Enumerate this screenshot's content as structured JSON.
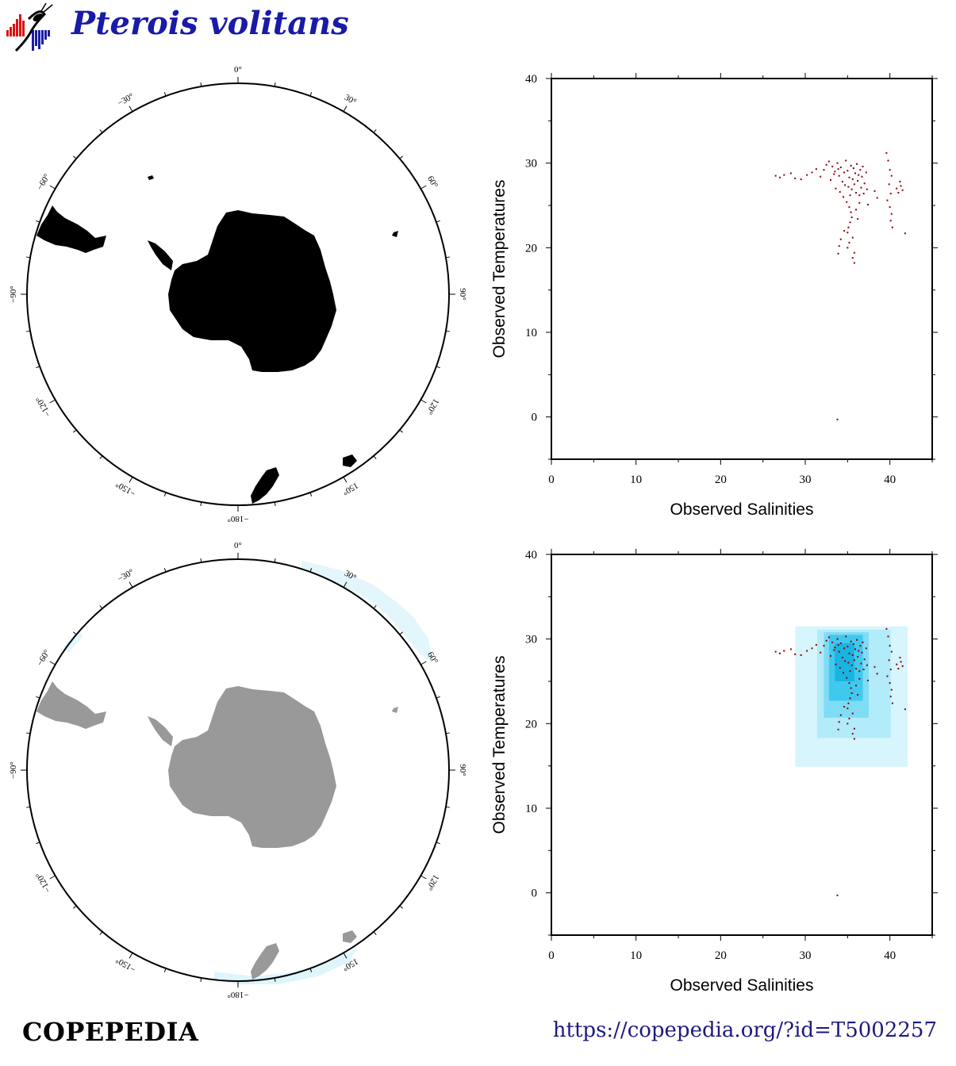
{
  "header": {
    "species": "Pterois volitans",
    "logo_icon": "copepod-histogram-logo"
  },
  "maps": {
    "longitude_labels": [
      {
        "deg": 0,
        "text": "0°"
      },
      {
        "deg": 30,
        "text": "30°"
      },
      {
        "deg": 60,
        "text": "60°"
      },
      {
        "deg": 90,
        "text": "90°"
      },
      {
        "deg": 120,
        "text": "120°"
      },
      {
        "deg": 150,
        "text": "150°"
      },
      {
        "deg": 180,
        "text": "−180°"
      },
      {
        "deg": 210,
        "text": "−150°"
      },
      {
        "deg": 240,
        "text": "−120°"
      },
      {
        "deg": 270,
        "text": "−90°"
      },
      {
        "deg": 300,
        "text": "−60°"
      },
      {
        "deg": 330,
        "text": "−30°"
      }
    ],
    "top": {
      "land_color": "#000000",
      "description_icon": "south-polar-map"
    },
    "bottom": {
      "land_color": "#999999",
      "ocean_highlight": "#d6f2fb"
    }
  },
  "chart_data": [
    {
      "type": "scatter",
      "xlabel": "Observed Salinities",
      "ylabel": "Observed Temperatures",
      "xlim": [
        0,
        45
      ],
      "ylim": [
        -5,
        40
      ],
      "xticks": [
        0,
        10,
        20,
        30,
        40
      ],
      "yticks": [
        0,
        10,
        20,
        30,
        40
      ],
      "point_color": "#8b0000",
      "points": [
        [
          26.5,
          28.5
        ],
        [
          27,
          28.3
        ],
        [
          27.5,
          28.6
        ],
        [
          28.3,
          28.8
        ],
        [
          28.8,
          28.2
        ],
        [
          29.5,
          28.1
        ],
        [
          30.2,
          28.6
        ],
        [
          30.8,
          28.9
        ],
        [
          31.3,
          29.3
        ],
        [
          31.8,
          28.4
        ],
        [
          32.2,
          29.2
        ],
        [
          32.5,
          29.8
        ],
        [
          32.8,
          30.2
        ],
        [
          33.2,
          29.6
        ],
        [
          33.5,
          29.0
        ],
        [
          33.8,
          30.0
        ],
        [
          34.0,
          28.5
        ],
        [
          34.2,
          29.5
        ],
        [
          34.4,
          27.8
        ],
        [
          34.6,
          28.9
        ],
        [
          34.8,
          30.3
        ],
        [
          35.0,
          29.1
        ],
        [
          35.1,
          27.2
        ],
        [
          35.2,
          28.3
        ],
        [
          35.4,
          29.7
        ],
        [
          35.5,
          26.9
        ],
        [
          35.6,
          28.1
        ],
        [
          35.7,
          29.4
        ],
        [
          35.8,
          27.5
        ],
        [
          35.9,
          28.8
        ],
        [
          36.0,
          26.5
        ],
        [
          36.1,
          29.9
        ],
        [
          36.2,
          27.9
        ],
        [
          36.3,
          28.6
        ],
        [
          36.4,
          26.2
        ],
        [
          36.5,
          29.2
        ],
        [
          36.6,
          27.1
        ],
        [
          36.7,
          28.4
        ],
        [
          36.8,
          29.6
        ],
        [
          37.0,
          27.6
        ],
        [
          37.2,
          28.9
        ],
        [
          33.6,
          27.0
        ],
        [
          34.1,
          26.6
        ],
        [
          34.5,
          26.0
        ],
        [
          34.9,
          25.4
        ],
        [
          35.2,
          24.8
        ],
        [
          35.4,
          24.2
        ],
        [
          35.5,
          23.6
        ],
        [
          35.3,
          23.0
        ],
        [
          35.1,
          22.4
        ],
        [
          35.0,
          21.8
        ],
        [
          35.6,
          21.2
        ],
        [
          35.2,
          20.6
        ],
        [
          35.0,
          20.0
        ],
        [
          35.8,
          19.4
        ],
        [
          35.6,
          18.8
        ],
        [
          35.8,
          18.2
        ],
        [
          34.0,
          20.2
        ],
        [
          33.9,
          19.3
        ],
        [
          34.2,
          21.0
        ],
        [
          34.6,
          22.0
        ],
        [
          36.0,
          24.5
        ],
        [
          36.2,
          23.4
        ],
        [
          36.4,
          25.3
        ],
        [
          33.0,
          28.0
        ],
        [
          33.4,
          28.7
        ],
        [
          33.9,
          29.3
        ],
        [
          34.7,
          27.4
        ],
        [
          35.3,
          26.2
        ],
        [
          36.9,
          26.4
        ],
        [
          37.3,
          26.9
        ],
        [
          37.4,
          25.1
        ],
        [
          38.2,
          26.7
        ],
        [
          38.5,
          25.9
        ],
        [
          39.6,
          31.2
        ],
        [
          39.8,
          30.3
        ],
        [
          40.0,
          29.2
        ],
        [
          40.2,
          28.5
        ],
        [
          39.9,
          27.5
        ],
        [
          40.1,
          26.4
        ],
        [
          39.7,
          25.6
        ],
        [
          40.0,
          24.8
        ],
        [
          40.2,
          24.0
        ],
        [
          40.1,
          23.2
        ],
        [
          40.3,
          22.4
        ],
        [
          40.8,
          27.0
        ],
        [
          41.0,
          26.5
        ],
        [
          41.3,
          27.3
        ],
        [
          41.5,
          26.8
        ],
        [
          41.2,
          27.8
        ],
        [
          41.8,
          21.7
        ],
        [
          33.8,
          -0.3
        ]
      ],
      "density_boxes": []
    },
    {
      "type": "scatter",
      "xlabel": "Observed Salinities",
      "ylabel": "Observed Temperatures",
      "xlim": [
        0,
        45
      ],
      "ylim": [
        -5,
        40
      ],
      "xticks": [
        0,
        10,
        20,
        30,
        40
      ],
      "yticks": [
        0,
        10,
        20,
        30,
        40
      ],
      "point_color": "#8b0000",
      "density_boxes": [
        {
          "x": [
            28.8,
            42.1
          ],
          "y": [
            14.9,
            31.5
          ],
          "color": "#d6f5fd"
        },
        {
          "x": [
            31.4,
            40.1
          ],
          "y": [
            18.3,
            31.1
          ],
          "color": "#b2ebfa"
        },
        {
          "x": [
            32.2,
            37.5
          ],
          "y": [
            20.7,
            30.8
          ],
          "color": "#7fdcf5"
        },
        {
          "x": [
            32.8,
            36.8
          ],
          "y": [
            22.7,
            30.5
          ],
          "color": "#3fc9ef"
        },
        {
          "x": [
            33.5,
            35.8
          ],
          "y": [
            25.0,
            29.5
          ],
          "color": "#18b4e2"
        }
      ]
    }
  ],
  "footer": {
    "brand": "COPEPEDIA",
    "url": "https://copepedia.org/?id=T5002257"
  }
}
